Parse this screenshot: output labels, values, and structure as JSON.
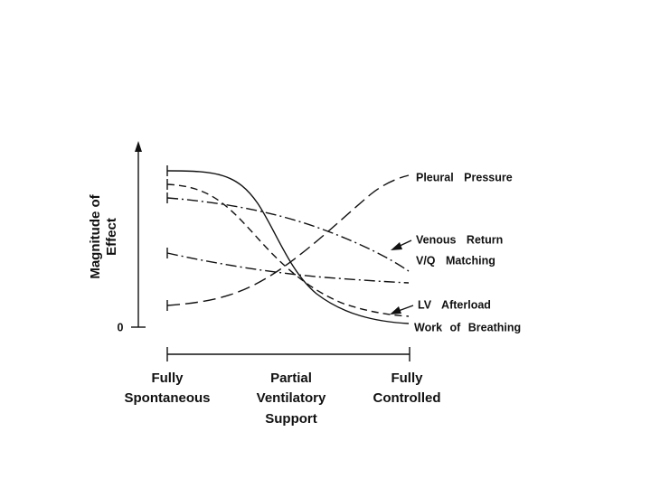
{
  "y_axis": {
    "label_lines": [
      "Magnitude of",
      "Effect"
    ],
    "zero_label": "0"
  },
  "x_axis": {
    "labels": [
      [
        "Fully",
        "Spontaneous"
      ],
      [
        "Partial",
        "Ventilatory",
        "Support"
      ],
      [
        "Fully",
        "Controlled"
      ]
    ]
  },
  "curves": [
    {
      "label": "Pleural Pressure"
    },
    {
      "label": "Venous Return"
    },
    {
      "label": "V/Q Matching"
    },
    {
      "label": "LV Afterload"
    },
    {
      "label": "Work of Breathing"
    }
  ]
}
